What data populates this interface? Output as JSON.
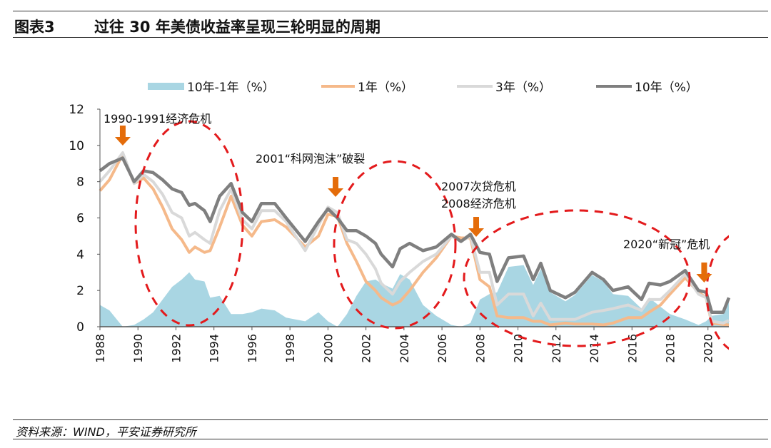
{
  "header": {
    "figure_label": "图表3",
    "title": "过往 30 年美债收益率呈现三轮明显的周期"
  },
  "footer": {
    "source": "资料来源：WIND，平安证券研究所"
  },
  "chart_data": {
    "type": "line",
    "title": "",
    "xlabel": "",
    "ylabel": "",
    "xlim": [
      1988,
      2021.1
    ],
    "ylim": [
      0,
      12
    ],
    "yticks": [
      "0",
      "2",
      "4",
      "6",
      "8",
      "10",
      "12"
    ],
    "xticks": [
      "1988",
      "1990",
      "1992",
      "1994",
      "1996",
      "1998",
      "2000",
      "2002",
      "2004",
      "2006",
      "2008",
      "2010",
      "2012",
      "2014",
      "2016",
      "2018",
      "2020"
    ],
    "grid": false,
    "legend_placement": "top",
    "x": [
      1988.0,
      1988.5,
      1989.2,
      1989.8,
      1990.3,
      1990.8,
      1991.3,
      1991.8,
      1992.3,
      1992.7,
      1993.0,
      1993.5,
      1993.8,
      1994.3,
      1994.9,
      1995.5,
      1996.0,
      1996.5,
      1997.2,
      1997.8,
      1998.8,
      1999.5,
      2000.0,
      2000.5,
      2001.0,
      2001.5,
      2002.0,
      2002.5,
      2002.8,
      2003.4,
      2003.8,
      2004.3,
      2005.0,
      2005.7,
      2006.5,
      2007.0,
      2007.5,
      2008.0,
      2008.5,
      2008.9,
      2009.5,
      2010.3,
      2010.8,
      2011.2,
      2011.7,
      2012.5,
      2013.0,
      2013.9,
      2014.5,
      2015.0,
      2015.8,
      2016.5,
      2016.9,
      2017.5,
      2018.0,
      2018.8,
      2019.5,
      2019.9,
      2020.2,
      2020.8,
      2021.1
    ],
    "series": [
      {
        "name": "10年-1年（%）",
        "kind": "area",
        "color": "#a9d6e3",
        "values": [
          1.2,
          0.9,
          0.0,
          0.1,
          0.4,
          0.8,
          1.5,
          2.2,
          2.6,
          3.0,
          2.6,
          2.5,
          1.6,
          1.7,
          0.7,
          0.7,
          0.8,
          1.0,
          0.9,
          0.5,
          0.3,
          0.8,
          0.3,
          0.0,
          0.7,
          1.7,
          2.5,
          2.6,
          2.4,
          2.1,
          2.9,
          2.6,
          1.2,
          0.6,
          0.1,
          0.0,
          0.2,
          1.5,
          1.8,
          1.9,
          3.3,
          3.4,
          2.3,
          3.2,
          1.9,
          1.4,
          1.75,
          2.85,
          2.5,
          1.8,
          1.7,
          1.0,
          1.6,
          1.1,
          0.7,
          0.4,
          0.1,
          0.3,
          0.6,
          0.7,
          1.5
        ]
      },
      {
        "name": "1年（%）",
        "kind": "line",
        "color": "#f5b98a",
        "values": [
          7.5,
          8.1,
          9.5,
          7.9,
          8.2,
          7.6,
          6.6,
          5.4,
          4.8,
          4.1,
          4.4,
          4.1,
          4.2,
          5.5,
          7.2,
          5.6,
          5.0,
          5.8,
          5.9,
          5.5,
          4.4,
          5.0,
          6.2,
          6.1,
          4.6,
          3.6,
          2.5,
          2.0,
          1.6,
          1.2,
          1.4,
          2.0,
          3.0,
          3.8,
          5.0,
          4.9,
          4.9,
          2.6,
          2.2,
          0.6,
          0.5,
          0.5,
          0.3,
          0.3,
          0.1,
          0.2,
          0.15,
          0.15,
          0.1,
          0.2,
          0.5,
          0.5,
          0.8,
          1.2,
          1.8,
          2.7,
          1.9,
          1.6,
          0.2,
          0.12,
          0.1
        ]
      },
      {
        "name": "3年（%）",
        "kind": "line",
        "color": "#d9d9d9",
        "values": [
          8.0,
          8.6,
          9.6,
          7.9,
          8.4,
          8.0,
          7.3,
          6.3,
          6.0,
          5.0,
          5.2,
          4.8,
          4.6,
          6.4,
          7.6,
          5.9,
          5.4,
          6.4,
          6.4,
          5.8,
          4.2,
          5.6,
          6.6,
          6.3,
          4.8,
          4.6,
          4.0,
          3.2,
          2.4,
          1.8,
          2.5,
          3.0,
          3.6,
          4.0,
          5.0,
          4.7,
          5.0,
          3.0,
          3.0,
          1.2,
          1.8,
          1.8,
          0.6,
          1.3,
          0.4,
          0.4,
          0.4,
          0.8,
          0.9,
          1.0,
          1.2,
          0.9,
          1.5,
          1.5,
          2.0,
          2.9,
          1.8,
          1.6,
          0.3,
          0.2,
          0.35
        ]
      },
      {
        "name": "10年（%）",
        "kind": "line",
        "color": "#7f7f7f",
        "values": [
          8.6,
          9.0,
          9.3,
          8.0,
          8.6,
          8.5,
          8.1,
          7.6,
          7.4,
          6.7,
          6.8,
          6.4,
          5.8,
          7.2,
          7.9,
          6.3,
          5.8,
          6.8,
          6.8,
          6.0,
          4.7,
          5.8,
          6.5,
          6.0,
          5.3,
          5.3,
          5.0,
          4.6,
          4.0,
          3.3,
          4.3,
          4.6,
          4.2,
          4.4,
          5.1,
          4.7,
          5.1,
          4.1,
          4.0,
          2.5,
          3.8,
          3.9,
          2.6,
          3.5,
          2.0,
          1.6,
          1.9,
          3.0,
          2.6,
          2.0,
          2.2,
          1.5,
          2.4,
          2.3,
          2.5,
          3.1,
          2.0,
          1.9,
          0.8,
          0.8,
          1.6
        ]
      }
    ],
    "annotations": [
      {
        "text": "1990-1991经济危机",
        "arrow_x": 1989.2
      },
      {
        "text": "2001“科网泡沫”破裂",
        "arrow_x": 2000.4
      },
      {
        "text": "2007次贷危机",
        "arrow_x": null
      },
      {
        "text": "2008经济危机",
        "arrow_x": 2007.8
      },
      {
        "text": "2020“新冠”危机",
        "arrow_x": 2019.8
      }
    ],
    "arrow_color": "#e46c0a",
    "circle_color": "#e31a1c"
  }
}
